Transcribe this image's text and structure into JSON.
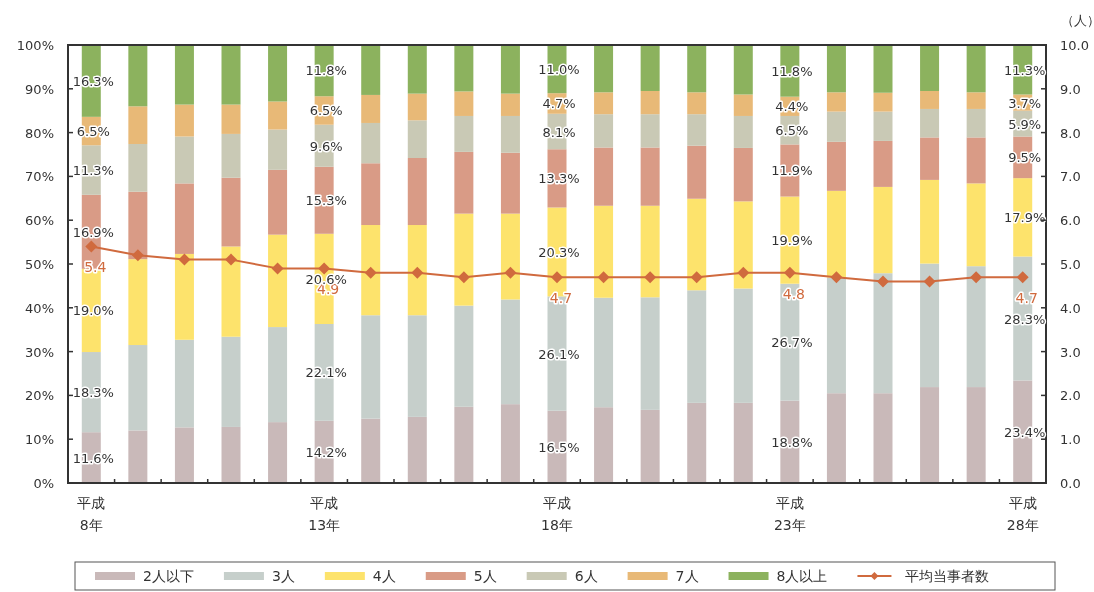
{
  "chart_data": {
    "type": "bar",
    "stacked": true,
    "legend": "bottom",
    "y2label": "（人）",
    "categories": [
      "平成 8年",
      null,
      null,
      null,
      null,
      "平成 13年",
      null,
      null,
      null,
      null,
      "平成 18年",
      null,
      null,
      null,
      null,
      "平成 23年",
      null,
      null,
      null,
      null,
      "平成 28年"
    ],
    "ylim": [
      0,
      100
    ],
    "yticks": [
      {
        "value": 0,
        "label": "0%"
      },
      {
        "value": 10,
        "label": "10%"
      },
      {
        "value": 20,
        "label": "20%"
      },
      {
        "value": 30,
        "label": "30%"
      },
      {
        "value": 40,
        "label": "40%"
      },
      {
        "value": 50,
        "label": "50%"
      },
      {
        "value": 60,
        "label": "60%"
      },
      {
        "value": 70,
        "label": "70%"
      },
      {
        "value": 80,
        "label": "80%"
      },
      {
        "value": 90,
        "label": "90%"
      },
      {
        "value": 100,
        "label": "100%"
      }
    ],
    "y2lim": [
      0,
      10
    ],
    "y2ticks": [
      {
        "value": 0,
        "label": "0.0"
      },
      {
        "value": 1,
        "label": "1.0"
      },
      {
        "value": 2,
        "label": "2.0"
      },
      {
        "value": 3,
        "label": "3.0"
      },
      {
        "value": 4,
        "label": "4.0"
      },
      {
        "value": 5,
        "label": "5.0"
      },
      {
        "value": 6,
        "label": "6.0"
      },
      {
        "value": 7,
        "label": "7.0"
      },
      {
        "value": 8,
        "label": "8.0"
      },
      {
        "value": 9,
        "label": "9.0"
      },
      {
        "value": 10,
        "label": "10.0"
      }
    ],
    "series": [
      {
        "name": "2人以下",
        "color": "#c9b9b9",
        "values": [
          11.6,
          12.0,
          12.7,
          12.8,
          13.9,
          14.2,
          14.7,
          15.1,
          17.4,
          18.0,
          16.5,
          17.3,
          16.7,
          18.3,
          18.3,
          18.8,
          20.5,
          20.5,
          21.9,
          21.9,
          23.4
        ],
        "value_labels": [
          "11.6%",
          null,
          null,
          null,
          null,
          "14.2%",
          null,
          null,
          null,
          null,
          "16.5%",
          null,
          null,
          null,
          null,
          "18.8%",
          null,
          null,
          null,
          null,
          "23.4%"
        ]
      },
      {
        "name": "3人",
        "color": "#c6cfcb",
        "values": [
          18.3,
          19.5,
          20.0,
          20.6,
          21.7,
          22.1,
          23.6,
          23.2,
          23.1,
          23.9,
          26.1,
          25.0,
          25.7,
          25.7,
          26.1,
          26.7,
          26.4,
          27.4,
          28.2,
          27.6,
          28.3
        ],
        "value_labels": [
          "18.3%",
          null,
          null,
          null,
          null,
          "22.1%",
          null,
          null,
          null,
          null,
          "26.1%",
          null,
          null,
          null,
          null,
          "26.7%",
          null,
          null,
          null,
          null,
          "28.3%"
        ]
      },
      {
        "name": "4人",
        "color": "#fde36c",
        "values": [
          19.0,
          19.6,
          19.6,
          20.6,
          21.1,
          20.6,
          20.6,
          20.6,
          21.0,
          19.6,
          20.3,
          21.0,
          20.9,
          20.9,
          19.9,
          19.9,
          19.8,
          19.7,
          19.1,
          18.9,
          17.9
        ],
        "value_labels": [
          "19.0%",
          null,
          null,
          null,
          null,
          "20.6%",
          null,
          null,
          null,
          null,
          "20.3%",
          null,
          null,
          null,
          null,
          "19.9%",
          null,
          null,
          null,
          null,
          "17.9%"
        ]
      },
      {
        "name": "5人",
        "color": "#d99b86",
        "values": [
          16.9,
          15.4,
          16.1,
          15.7,
          14.8,
          15.3,
          14.1,
          15.3,
          14.1,
          13.9,
          13.3,
          13.3,
          13.3,
          12.1,
          12.2,
          11.9,
          11.2,
          10.5,
          9.7,
          10.5,
          9.5
        ],
        "value_labels": [
          "16.9%",
          null,
          null,
          null,
          null,
          "15.3%",
          null,
          null,
          null,
          null,
          "13.3%",
          null,
          null,
          null,
          null,
          "11.9%",
          null,
          null,
          null,
          null,
          "9.5%"
        ]
      },
      {
        "name": "6人",
        "color": "#c9c9b5",
        "values": [
          11.3,
          10.9,
          10.7,
          10.0,
          9.2,
          9.6,
          9.2,
          8.6,
          8.2,
          8.4,
          8.1,
          7.6,
          7.6,
          7.2,
          7.3,
          6.5,
          6.9,
          6.7,
          6.5,
          6.5,
          5.9
        ],
        "value_labels": [
          "11.3%",
          null,
          null,
          null,
          null,
          "9.6%",
          null,
          null,
          null,
          null,
          "8.1%",
          null,
          null,
          null,
          null,
          "6.5%",
          null,
          null,
          null,
          null,
          "5.9%"
        ]
      },
      {
        "name": "7人",
        "color": "#e8b977",
        "values": [
          6.5,
          8.6,
          7.3,
          6.7,
          6.4,
          6.5,
          6.4,
          6.1,
          5.6,
          5.1,
          4.7,
          5.0,
          5.3,
          5.0,
          4.9,
          4.4,
          4.4,
          4.3,
          4.1,
          3.8,
          3.7
        ],
        "value_labels": [
          "6.5%",
          null,
          null,
          null,
          null,
          "6.5%",
          null,
          null,
          null,
          null,
          "4.7%",
          null,
          null,
          null,
          null,
          "4.4%",
          null,
          null,
          null,
          null,
          "3.7%"
        ]
      },
      {
        "name": "8人以上",
        "color": "#8cb25e",
        "values": [
          16.3,
          14.0,
          13.6,
          13.6,
          12.9,
          11.8,
          11.4,
          11.1,
          10.6,
          11.1,
          11.0,
          10.8,
          10.5,
          10.8,
          11.3,
          11.8,
          10.8,
          10.9,
          10.5,
          10.8,
          11.3
        ],
        "value_labels": [
          "16.3%",
          null,
          null,
          null,
          null,
          "11.8%",
          null,
          null,
          null,
          null,
          "11.0%",
          null,
          null,
          null,
          null,
          "11.8%",
          null,
          null,
          null,
          null,
          "11.3%"
        ]
      },
      {
        "name": "平均当事者数",
        "type": "line",
        "axis": "y2",
        "marker": "diamond",
        "color": "#d06a3e",
        "values": [
          5.4,
          5.2,
          5.1,
          5.1,
          4.9,
          4.9,
          4.8,
          4.8,
          4.7,
          4.8,
          4.7,
          4.7,
          4.7,
          4.7,
          4.8,
          4.8,
          4.7,
          4.6,
          4.6,
          4.7,
          4.7
        ],
        "value_labels": [
          "5.4",
          null,
          null,
          null,
          null,
          "4.9",
          null,
          null,
          null,
          null,
          "4.7",
          null,
          null,
          null,
          null,
          "4.8",
          null,
          null,
          null,
          null,
          "4.7"
        ]
      }
    ]
  }
}
